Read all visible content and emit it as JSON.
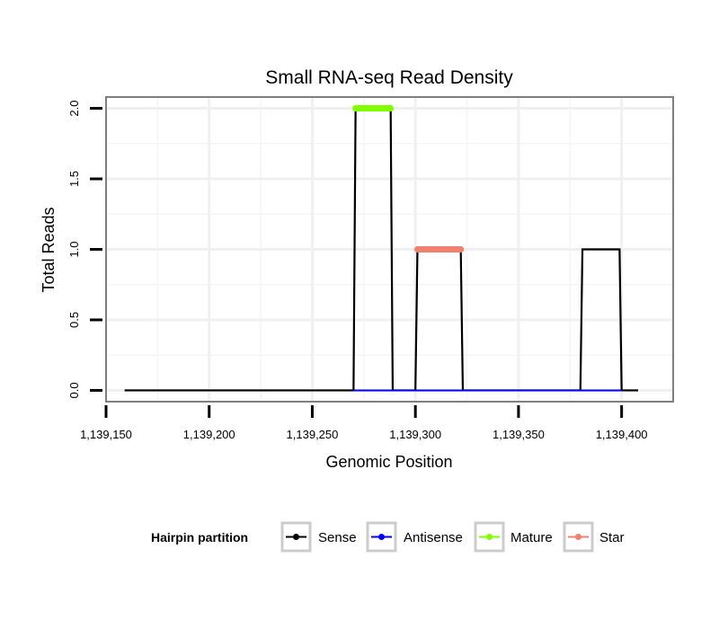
{
  "chart_data": {
    "type": "line",
    "title": "Small RNA-seq Read Density",
    "xlabel": "Genomic Position",
    "ylabel": "Total Reads",
    "xlim": [
      1139150,
      1139425
    ],
    "ylim": [
      -0.08,
      2.08
    ],
    "x_ticks": [
      1139150,
      1139200,
      1139250,
      1139300,
      1139350,
      1139400
    ],
    "x_tick_labels": [
      "1,139,150",
      "1,139,200",
      "1,139,250",
      "1,139,300",
      "1,139,350",
      "1,139,400"
    ],
    "y_ticks": [
      0,
      0.5,
      1,
      1.5,
      2
    ],
    "y_tick_labels": [
      "0.0",
      "0.5",
      "1.0",
      "1.5",
      "2.0"
    ],
    "grid": true,
    "series": [
      {
        "name": "Sense",
        "color": "#000000",
        "points": [
          [
            1139159,
            0
          ],
          [
            1139270,
            0
          ],
          [
            1139271,
            2
          ],
          [
            1139288,
            2
          ],
          [
            1139289,
            0
          ],
          [
            1139300,
            0
          ],
          [
            1139301,
            1
          ],
          [
            1139322,
            1
          ],
          [
            1139323,
            0
          ],
          [
            1139380,
            0
          ],
          [
            1139381,
            1
          ],
          [
            1139399,
            1
          ],
          [
            1139400,
            0
          ],
          [
            1139408,
            0
          ]
        ]
      },
      {
        "name": "Antisense",
        "color": "#0000ff",
        "points": [
          [
            1139270,
            0
          ],
          [
            1139289,
            0
          ],
          [
            1139300,
            0
          ],
          [
            1139323,
            0
          ],
          [
            1139380,
            0
          ],
          [
            1139400,
            0
          ]
        ]
      },
      {
        "name": "Mature",
        "color": "#7fff00",
        "points": [
          [
            1139271,
            2
          ],
          [
            1139288,
            2
          ]
        ]
      },
      {
        "name": "Star",
        "color": "#f08070",
        "points": [
          [
            1139301,
            1
          ],
          [
            1139322,
            1
          ]
        ]
      }
    ],
    "legend": {
      "title": "Hairpin partition",
      "position": "bottom",
      "entries": [
        {
          "label": "Sense",
          "color": "#000000"
        },
        {
          "label": "Antisense",
          "color": "#0000ff"
        },
        {
          "label": "Mature",
          "color": "#7fff00"
        },
        {
          "label": "Star",
          "color": "#f08070"
        }
      ]
    }
  }
}
